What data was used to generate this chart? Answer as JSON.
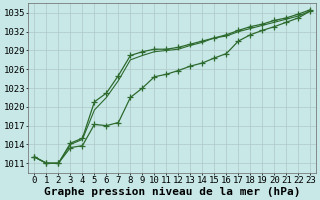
{
  "x": [
    0,
    1,
    2,
    3,
    4,
    5,
    6,
    7,
    8,
    9,
    10,
    11,
    12,
    13,
    14,
    15,
    16,
    17,
    18,
    19,
    20,
    21,
    22,
    23
  ],
  "line_top": [
    1012.0,
    1011.0,
    1011.0,
    1014.2,
    1015.0,
    1020.8,
    1022.2,
    1025.0,
    1028.2,
    1028.8,
    1029.2,
    1029.2,
    1029.5,
    1030.0,
    1030.5,
    1031.0,
    1031.5,
    1032.2,
    1032.8,
    1033.2,
    1033.8,
    1034.2,
    1034.8,
    1035.5
  ],
  "line_mid": [
    1012.0,
    1011.0,
    1011.0,
    1014.0,
    1014.8,
    1019.5,
    1021.5,
    1024.2,
    1027.5,
    1028.2,
    1028.8,
    1029.0,
    1029.2,
    1029.8,
    1030.3,
    1031.0,
    1031.3,
    1032.0,
    1032.5,
    1033.0,
    1033.5,
    1034.0,
    1034.5,
    1035.3
  ],
  "line_bot": [
    1012.0,
    1011.0,
    1011.0,
    1013.5,
    1013.8,
    1017.2,
    1017.0,
    1017.5,
    1021.5,
    1023.0,
    1024.8,
    1025.2,
    1025.8,
    1026.5,
    1027.0,
    1027.8,
    1028.5,
    1030.5,
    1031.5,
    1032.2,
    1032.8,
    1033.5,
    1034.2,
    1035.3
  ],
  "yticks": [
    1011,
    1014,
    1017,
    1020,
    1023,
    1026,
    1029,
    1032,
    1035
  ],
  "xticks": [
    0,
    1,
    2,
    3,
    4,
    5,
    6,
    7,
    8,
    9,
    10,
    11,
    12,
    13,
    14,
    15,
    16,
    17,
    18,
    19,
    20,
    21,
    22,
    23
  ],
  "xlabel": "Graphe pression niveau de la mer (hPa)",
  "line_color": "#2d6a2d",
  "bg_color": "#c8e8e8",
  "grid_color": "#b0c8c8",
  "ylim": [
    1009.5,
    1036.5
  ],
  "xlim": [
    -0.5,
    23.5
  ],
  "axis_fontsize": 6.5,
  "label_fontsize": 8.0
}
